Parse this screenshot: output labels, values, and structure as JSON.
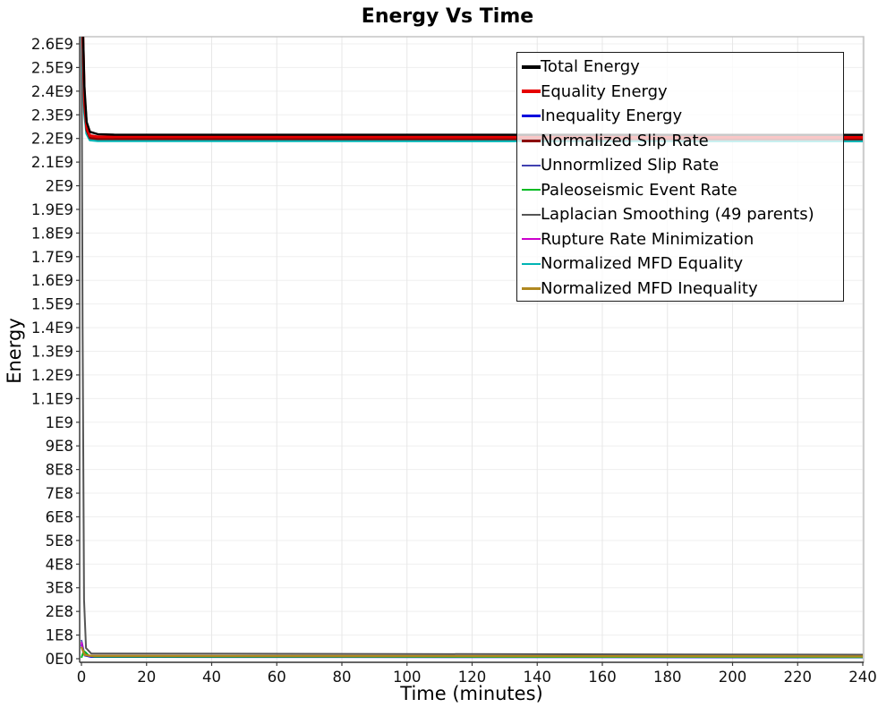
{
  "page": {
    "background": "#ffffff"
  },
  "chart_data": {
    "type": "line",
    "title": "Energy Vs Time",
    "xlabel": "Time (minutes)",
    "ylabel": "Energy",
    "xlim": [
      0,
      240
    ],
    "ylim": [
      0,
      2650000000
    ],
    "grid": true,
    "legend": {
      "position": "top-right-inside",
      "border_color": "#1a1a1a",
      "background": "rgba(255,255,255,0.78)"
    },
    "x_ticks": [
      {
        "value": 0,
        "label": "0"
      },
      {
        "value": 20,
        "label": "20"
      },
      {
        "value": 40,
        "label": "40"
      },
      {
        "value": 60,
        "label": "60"
      },
      {
        "value": 80,
        "label": "80"
      },
      {
        "value": 100,
        "label": "100"
      },
      {
        "value": 120,
        "label": "120"
      },
      {
        "value": 140,
        "label": "140"
      },
      {
        "value": 160,
        "label": "160"
      },
      {
        "value": 180,
        "label": "180"
      },
      {
        "value": 200,
        "label": "200"
      },
      {
        "value": 220,
        "label": "220"
      },
      {
        "value": 240,
        "label": "240"
      }
    ],
    "y_ticks": [
      {
        "value": 0,
        "label": "0E0"
      },
      {
        "value": 100000000.0,
        "label": "1E8"
      },
      {
        "value": 200000000.0,
        "label": "2E8"
      },
      {
        "value": 300000000.0,
        "label": "3E8"
      },
      {
        "value": 400000000.0,
        "label": "4E8"
      },
      {
        "value": 500000000.0,
        "label": "5E8"
      },
      {
        "value": 600000000.0,
        "label": "6E8"
      },
      {
        "value": 700000000.0,
        "label": "7E8"
      },
      {
        "value": 800000000.0,
        "label": "8E8"
      },
      {
        "value": 900000000.0,
        "label": "9E8"
      },
      {
        "value": 1000000000.0,
        "label": "1E9"
      },
      {
        "value": 1100000000.0,
        "label": "1.1E9"
      },
      {
        "value": 1200000000.0,
        "label": "1.2E9"
      },
      {
        "value": 1300000000.0,
        "label": "1.3E9"
      },
      {
        "value": 1400000000.0,
        "label": "1.4E9"
      },
      {
        "value": 1500000000.0,
        "label": "1.5E9"
      },
      {
        "value": 1600000000.0,
        "label": "1.6E9"
      },
      {
        "value": 1700000000.0,
        "label": "1.7E9"
      },
      {
        "value": 1800000000.0,
        "label": "1.8E9"
      },
      {
        "value": 1900000000.0,
        "label": "1.9E9"
      },
      {
        "value": 2000000000.0,
        "label": "2E9"
      },
      {
        "value": 2100000000.0,
        "label": "2.1E9"
      },
      {
        "value": 2200000000.0,
        "label": "2.2E9"
      },
      {
        "value": 2300000000.0,
        "label": "2.3E9"
      },
      {
        "value": 2400000000.0,
        "label": "2.4E9"
      },
      {
        "value": 2500000000.0,
        "label": "2.5E9"
      },
      {
        "value": 2600000000.0,
        "label": "2.6E9"
      }
    ],
    "draw_order": [
      2,
      4,
      7,
      6,
      5,
      9,
      8,
      3,
      1,
      0
    ],
    "series": [
      {
        "name": "Total Energy",
        "color": "#000000",
        "line_width": 2.4,
        "swatch_thickness": 4,
        "points": [
          [
            0,
            2980000000.0
          ],
          [
            0.4,
            2700000000.0
          ],
          [
            0.9,
            2420000000.0
          ],
          [
            1.6,
            2270000000.0
          ],
          [
            2.6,
            2228000000.0
          ],
          [
            5,
            2218000000.0
          ],
          [
            10,
            2216000000.0
          ],
          [
            240,
            2215000000.0
          ]
        ]
      },
      {
        "name": "Equality Energy",
        "color": "#e60000",
        "line_width": 3,
        "swatch_thickness": 4,
        "points": [
          [
            0,
            2940000000.0
          ],
          [
            0.4,
            2650000000.0
          ],
          [
            0.9,
            2380000000.0
          ],
          [
            1.6,
            2250000000.0
          ],
          [
            2.6,
            2212000000.0
          ],
          [
            5,
            2207000000.0
          ],
          [
            240,
            2205000000.0
          ]
        ]
      },
      {
        "name": "Inequality Energy",
        "color": "#0000dd",
        "line_width": 2.2,
        "swatch_thickness": 3,
        "points": [
          [
            0,
            60000000.0
          ],
          [
            1,
            14000000.0
          ],
          [
            3,
            8000000.0
          ],
          [
            240,
            6000000.0
          ]
        ]
      },
      {
        "name": "Normalized Slip Rate",
        "color": "#8b0000",
        "line_width": 2.6,
        "swatch_thickness": 3,
        "points": [
          [
            0,
            2900000000.0
          ],
          [
            0.4,
            2600000000.0
          ],
          [
            0.9,
            2340000000.0
          ],
          [
            1.6,
            2235000000.0
          ],
          [
            2.6,
            2202000000.0
          ],
          [
            5,
            2198000000.0
          ],
          [
            240,
            2197000000.0
          ]
        ]
      },
      {
        "name": "Unnormlized Slip Rate",
        "color": "#4040b0",
        "line_width": 1.6,
        "swatch_thickness": 2,
        "points": [
          [
            0,
            80000000.0
          ],
          [
            1,
            18000000.0
          ],
          [
            3,
            9000000.0
          ],
          [
            240,
            7000000.0
          ]
        ]
      },
      {
        "name": "Paleoseismic Event Rate",
        "color": "#00bb22",
        "line_width": 2,
        "swatch_thickness": 2,
        "points": [
          [
            0,
            4000000.0
          ],
          [
            0.7,
            32000000.0
          ],
          [
            1.3,
            27000000.0
          ],
          [
            2.2,
            14000000.0
          ],
          [
            4,
            9000000.0
          ],
          [
            240,
            7000000.0
          ]
        ]
      },
      {
        "name": "Laplacian Smoothing (49 parents)",
        "color": "#555555",
        "line_width": 2,
        "swatch_thickness": 2,
        "points": [
          [
            0,
            2820000000.0
          ],
          [
            0.35,
            1400000000.0
          ],
          [
            0.8,
            250000000.0
          ],
          [
            1.4,
            45000000.0
          ],
          [
            3,
            22000000.0
          ],
          [
            240,
            17000000.0
          ]
        ]
      },
      {
        "name": "Rupture Rate Minimization",
        "color": "#cc00cc",
        "line_width": 2,
        "swatch_thickness": 2,
        "points": [
          [
            0,
            70000000.0
          ],
          [
            0.6,
            24000000.0
          ],
          [
            2,
            12000000.0
          ],
          [
            240,
            9000000.0
          ]
        ]
      },
      {
        "name": "Normalized MFD Equality",
        "color": "#00b4b4",
        "line_width": 2.8,
        "swatch_thickness": 2.5,
        "points": [
          [
            0,
            2860000000.0
          ],
          [
            0.4,
            2550000000.0
          ],
          [
            0.9,
            2310000000.0
          ],
          [
            1.6,
            2220000000.0
          ],
          [
            2.6,
            2193000000.0
          ],
          [
            5,
            2190000000.0
          ],
          [
            240,
            2189000000.0
          ]
        ]
      },
      {
        "name": "Normalized MFD Inequality",
        "color": "#b08820",
        "line_width": 2.4,
        "swatch_thickness": 2.5,
        "points": [
          [
            0,
            50000000.0
          ],
          [
            1,
            16000000.0
          ],
          [
            3,
            12000000.0
          ],
          [
            240,
            10000000.0
          ]
        ]
      }
    ]
  }
}
